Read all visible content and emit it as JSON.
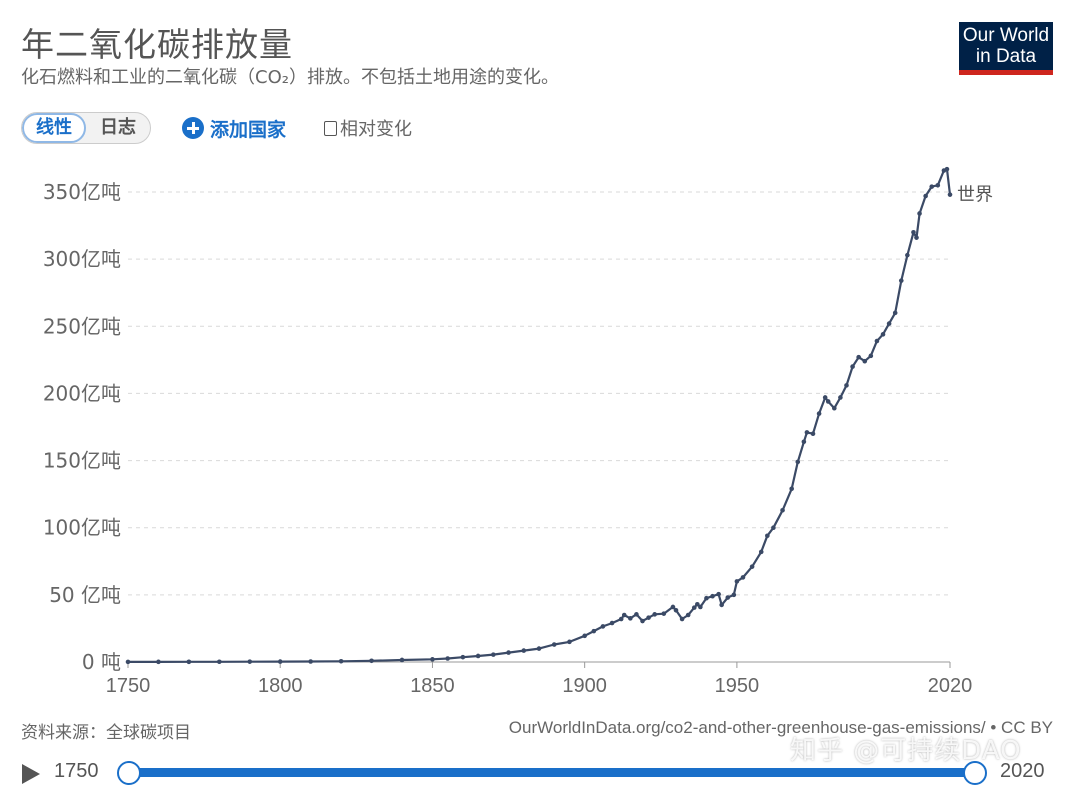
{
  "header": {
    "title": "年二氧化碳排放量",
    "subtitle": "化石燃料和工业的二氧化碳（CO₂）排放。不包括土地用途的变化。",
    "logo_line1": "Our World",
    "logo_line2": "in Data"
  },
  "controls": {
    "linear_label": "线性",
    "log_label": "日志",
    "add_country_label": "添加国家",
    "relative_change_label": "相对变化"
  },
  "footer": {
    "source": "资料来源：全球碳项目",
    "url": "OurWorldInData.org/co2-and-other-greenhouse-gas-emissions/ • CC BY",
    "watermark": "知乎 @可持续DAO"
  },
  "timeline": {
    "start": "1750",
    "end": "2020"
  },
  "colors": {
    "series": "#3b4a66",
    "accent": "#1a6fc9",
    "logo_bg": "#002147",
    "logo_bar": "#ce261e"
  },
  "chart_data": {
    "type": "line",
    "title": "年二氧化碳排放量",
    "ylabel": "",
    "xlabel": "",
    "xlim": [
      1750,
      2020
    ],
    "ylim": [
      0,
      35000000000
    ],
    "grid": true,
    "yticks": [
      {
        "value": 0,
        "label": "0 吨"
      },
      {
        "value": 5000000000,
        "label": "50 亿吨"
      },
      {
        "value": 10000000000,
        "label": "100亿吨"
      },
      {
        "value": 15000000000,
        "label": "150亿吨"
      },
      {
        "value": 20000000000,
        "label": "200亿吨"
      },
      {
        "value": 25000000000,
        "label": "250亿吨"
      },
      {
        "value": 30000000000,
        "label": "300亿吨"
      },
      {
        "value": 35000000000,
        "label": "350亿吨"
      }
    ],
    "xticks": [
      1750,
      1800,
      1850,
      1900,
      1950,
      2020
    ],
    "series": [
      {
        "name": "世界",
        "color": "#3b4a66",
        "points": [
          [
            1750,
            9000000
          ],
          [
            1760,
            11000000
          ],
          [
            1770,
            14000000
          ],
          [
            1780,
            18000000
          ],
          [
            1790,
            25000000
          ],
          [
            1800,
            30000000
          ],
          [
            1810,
            37000000
          ],
          [
            1820,
            55000000
          ],
          [
            1830,
            90000000
          ],
          [
            1840,
            150000000
          ],
          [
            1850,
            200000000
          ],
          [
            1855,
            260000000
          ],
          [
            1860,
            360000000
          ],
          [
            1865,
            450000000
          ],
          [
            1870,
            550000000
          ],
          [
            1875,
            700000000
          ],
          [
            1880,
            850000000
          ],
          [
            1885,
            1000000000
          ],
          [
            1890,
            1300000000
          ],
          [
            1895,
            1500000000
          ],
          [
            1900,
            1950000000
          ],
          [
            1903,
            2300000000
          ],
          [
            1906,
            2650000000
          ],
          [
            1909,
            2900000000
          ],
          [
            1912,
            3200000000
          ],
          [
            1913,
            3500000000
          ],
          [
            1915,
            3250000000
          ],
          [
            1917,
            3550000000
          ],
          [
            1919,
            3050000000
          ],
          [
            1921,
            3300000000
          ],
          [
            1923,
            3550000000
          ],
          [
            1926,
            3600000000
          ],
          [
            1929,
            4100000000
          ],
          [
            1930,
            3850000000
          ],
          [
            1932,
            3200000000
          ],
          [
            1934,
            3500000000
          ],
          [
            1936,
            4050000000
          ],
          [
            1937,
            4300000000
          ],
          [
            1938,
            4100000000
          ],
          [
            1940,
            4750000000
          ],
          [
            1942,
            4900000000
          ],
          [
            1944,
            5050000000
          ],
          [
            1945,
            4250000000
          ],
          [
            1947,
            4800000000
          ],
          [
            1949,
            5000000000
          ],
          [
            1950,
            6000000000
          ],
          [
            1952,
            6300000000
          ],
          [
            1955,
            7100000000
          ],
          [
            1958,
            8200000000
          ],
          [
            1960,
            9400000000
          ],
          [
            1962,
            10000000000
          ],
          [
            1965,
            11300000000
          ],
          [
            1968,
            12900000000
          ],
          [
            1970,
            14900000000
          ],
          [
            1972,
            16400000000
          ],
          [
            1973,
            17100000000
          ],
          [
            1975,
            17000000000
          ],
          [
            1977,
            18500000000
          ],
          [
            1979,
            19700000000
          ],
          [
            1980,
            19400000000
          ],
          [
            1982,
            18900000000
          ],
          [
            1984,
            19700000000
          ],
          [
            1986,
            20600000000
          ],
          [
            1988,
            22000000000
          ],
          [
            1990,
            22700000000
          ],
          [
            1992,
            22400000000
          ],
          [
            1994,
            22800000000
          ],
          [
            1996,
            23900000000
          ],
          [
            1998,
            24400000000
          ],
          [
            2000,
            25200000000
          ],
          [
            2002,
            26000000000
          ],
          [
            2004,
            28400000000
          ],
          [
            2006,
            30300000000
          ],
          [
            2008,
            32000000000
          ],
          [
            2009,
            31600000000
          ],
          [
            2010,
            33400000000
          ],
          [
            2012,
            34700000000
          ],
          [
            2014,
            35400000000
          ],
          [
            2016,
            35500000000
          ],
          [
            2018,
            36600000000
          ],
          [
            2019,
            36700000000
          ],
          [
            2020,
            34800000000
          ]
        ]
      }
    ]
  }
}
